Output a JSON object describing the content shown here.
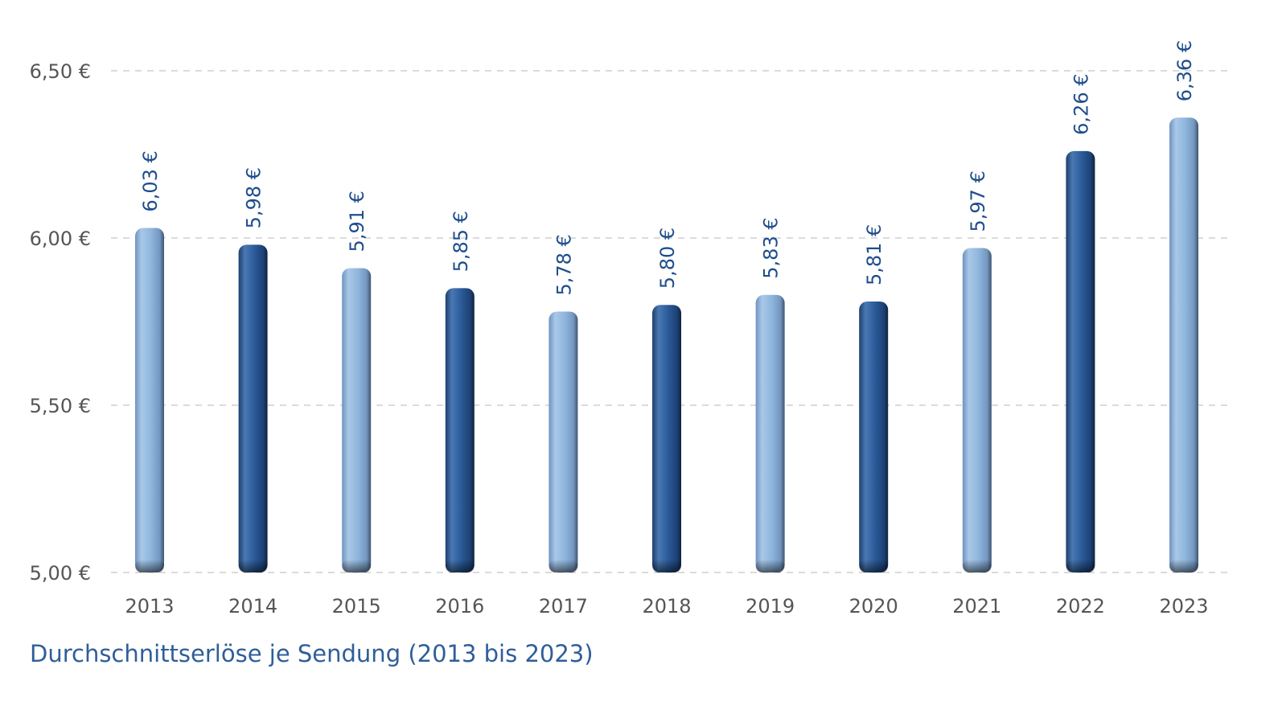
{
  "chart_data": {
    "type": "bar",
    "title": "Durchschnittserlöse je Sendung (2013 bis 2023)",
    "categories": [
      "2013",
      "2014",
      "2015",
      "2016",
      "2017",
      "2018",
      "2019",
      "2020",
      "2021",
      "2022",
      "2023"
    ],
    "values": [
      6.03,
      5.98,
      5.91,
      5.85,
      5.78,
      5.8,
      5.83,
      5.81,
      5.97,
      6.26,
      6.36
    ],
    "data_labels": [
      "6,03 €",
      "5,98 €",
      "5,91 €",
      "5,85 €",
      "5,78 €",
      "5,80 €",
      "5,83 €",
      "5,81 €",
      "5,97 €",
      "6,26 €",
      "6,36 €"
    ],
    "yticks": [
      5.0,
      5.5,
      6.0,
      6.5
    ],
    "ytick_labels": [
      "5,00 €",
      "5,50 €",
      "6,00 €",
      "6,50 €"
    ],
    "ylim": [
      5.0,
      6.5
    ],
    "grid": true,
    "bar_colors": [
      "light",
      "dark",
      "light",
      "dark",
      "light",
      "dark",
      "light",
      "dark",
      "light",
      "dark",
      "light"
    ],
    "colors": {
      "light": "#8fb6dd",
      "dark": "#2a5a99",
      "label": "#1f4e8c",
      "axis_text": "#555555"
    }
  }
}
